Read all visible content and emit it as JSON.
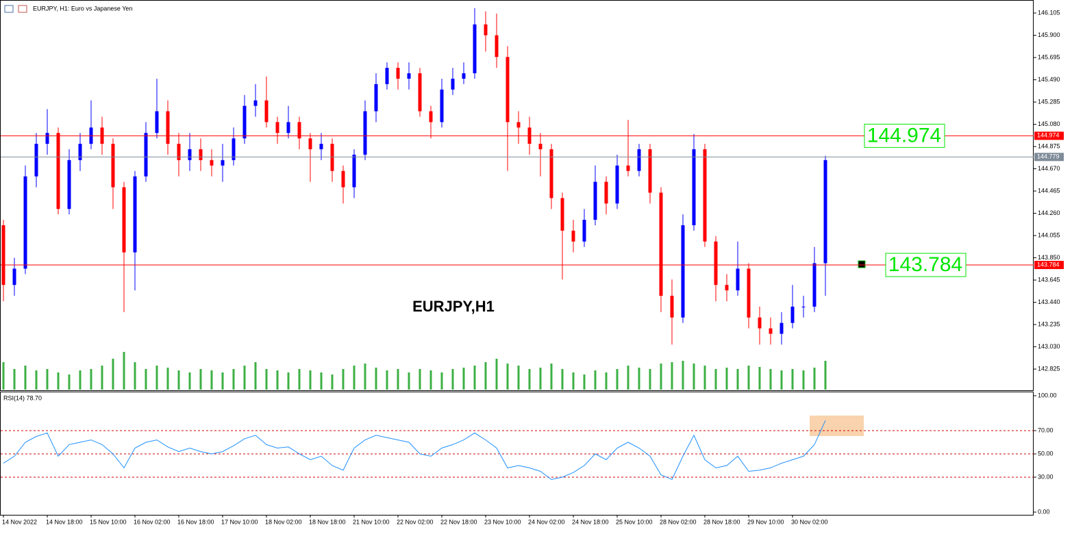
{
  "header": {
    "title": "EURJPY, H1:  Euro vs Japanese Yen"
  },
  "chart_data": [
    {
      "type": "candlestick",
      "title": "EURJPY,H1",
      "categories": [
        "14 Nov 2022",
        null,
        null,
        null,
        "14 Nov 18:00",
        null,
        null,
        null,
        "15 Nov 10:00",
        null,
        null,
        null,
        "16 Nov 02:00",
        null,
        null,
        null,
        "16 Nov 18:00",
        null,
        null,
        null,
        "17 Nov 10:00",
        null,
        null,
        null,
        "18 Nov 02:00",
        null,
        null,
        null,
        "18 Nov 18:00",
        null,
        null,
        null,
        "21 Nov 10:00",
        null,
        null,
        null,
        "22 Nov 02:00",
        null,
        null,
        null,
        "22 Nov 18:00",
        null,
        null,
        null,
        "23 Nov 10:00",
        null,
        null,
        null,
        "24 Nov 02:00",
        null,
        null,
        null,
        "24 Nov 18:00",
        null,
        null,
        null,
        "25 Nov 10:00",
        null,
        null,
        null,
        "28 Nov 02:00",
        null,
        null,
        null,
        "28 Nov 18:00",
        null,
        null,
        null,
        "29 Nov 10:00",
        null,
        null,
        null,
        "30 Nov 02:00",
        null,
        null,
        null
      ],
      "open": [
        144.15,
        143.6,
        143.75,
        144.6,
        144.9,
        145.0,
        144.3,
        144.75,
        144.9,
        145.05,
        144.9,
        144.5,
        143.9,
        144.6,
        145.0,
        145.2,
        144.9,
        144.75,
        144.85,
        144.75,
        144.7,
        144.75,
        144.95,
        145.25,
        145.3,
        145.1,
        145.0,
        145.1,
        144.95,
        144.85,
        144.9,
        144.65,
        144.5,
        144.8,
        145.2,
        145.45,
        145.6,
        145.5,
        145.55,
        145.2,
        145.1,
        145.4,
        145.5,
        145.55,
        146.0,
        145.9,
        145.7,
        145.1,
        145.05,
        144.9,
        144.85,
        144.4,
        144.1,
        144.0,
        144.2,
        144.55,
        144.35,
        144.7,
        144.65,
        144.85,
        144.45,
        143.5,
        143.3,
        144.15,
        144.85,
        144.0,
        143.6,
        143.55,
        143.75,
        143.3,
        143.2,
        143.15,
        143.25,
        143.4,
        143.4,
        143.8
      ],
      "high": [
        144.2,
        143.85,
        144.7,
        145.0,
        145.22,
        145.05,
        144.85,
        145.0,
        145.3,
        145.15,
        144.95,
        144.55,
        144.65,
        145.1,
        145.5,
        145.3,
        145.0,
        145.0,
        144.95,
        144.85,
        144.9,
        145.05,
        145.35,
        145.45,
        145.52,
        145.15,
        145.25,
        145.15,
        145.0,
        145.0,
        144.95,
        144.7,
        144.85,
        145.3,
        145.55,
        145.65,
        145.65,
        145.65,
        145.6,
        145.25,
        145.5,
        145.6,
        145.65,
        146.15,
        146.12,
        146.1,
        145.8,
        145.2,
        145.15,
        145.0,
        144.9,
        144.45,
        144.2,
        144.3,
        144.7,
        144.6,
        144.8,
        145.12,
        144.9,
        144.9,
        144.5,
        143.65,
        144.25,
        144.99,
        144.9,
        144.05,
        143.7,
        144.0,
        143.8,
        143.4,
        143.3,
        143.35,
        143.6,
        143.5,
        143.95,
        144.79
      ],
      "low": [
        143.45,
        143.5,
        143.7,
        144.5,
        144.8,
        144.25,
        144.25,
        144.65,
        144.85,
        144.8,
        144.3,
        143.35,
        143.55,
        144.55,
        144.95,
        144.8,
        144.6,
        144.65,
        144.65,
        144.6,
        144.55,
        144.7,
        144.9,
        145.15,
        145.05,
        144.9,
        144.95,
        144.85,
        144.55,
        144.75,
        144.55,
        144.35,
        144.4,
        144.75,
        145.1,
        145.4,
        145.4,
        145.4,
        145.15,
        144.95,
        145.05,
        145.35,
        145.45,
        145.5,
        145.75,
        145.6,
        144.65,
        144.9,
        144.8,
        144.6,
        144.3,
        143.65,
        143.9,
        143.95,
        144.15,
        144.25,
        144.3,
        144.6,
        144.6,
        144.35,
        143.35,
        143.05,
        143.25,
        144.1,
        143.95,
        143.45,
        143.45,
        143.5,
        143.2,
        143.05,
        143.05,
        143.05,
        143.2,
        143.3,
        143.35,
        143.5
      ],
      "close": [
        143.6,
        143.75,
        144.6,
        144.9,
        145.0,
        144.3,
        144.75,
        144.9,
        145.05,
        144.9,
        144.5,
        143.9,
        144.6,
        145.0,
        145.2,
        144.9,
        144.75,
        144.85,
        144.75,
        144.7,
        144.75,
        144.95,
        145.25,
        145.3,
        145.1,
        145.0,
        145.1,
        144.95,
        144.85,
        144.9,
        144.65,
        144.5,
        144.8,
        145.2,
        145.45,
        145.6,
        145.5,
        145.55,
        145.2,
        145.1,
        145.4,
        145.5,
        145.55,
        146.0,
        145.9,
        145.7,
        145.1,
        145.05,
        144.9,
        144.85,
        144.4,
        144.1,
        144.0,
        144.2,
        144.55,
        144.35,
        144.7,
        144.65,
        144.85,
        144.45,
        143.5,
        143.3,
        144.15,
        144.85,
        144.0,
        143.6,
        143.55,
        143.75,
        143.3,
        143.2,
        143.15,
        143.25,
        143.4,
        143.4,
        143.8,
        144.75
      ],
      "up_color": "#0000ff",
      "down_color": "#ff0000",
      "volumes": [
        40,
        30,
        35,
        28,
        30,
        25,
        22,
        28,
        30,
        35,
        45,
        55,
        40,
        30,
        35,
        32,
        28,
        25,
        30,
        28,
        25,
        30,
        35,
        40,
        30,
        28,
        25,
        30,
        28,
        25,
        22,
        30,
        35,
        38,
        32,
        28,
        30,
        25,
        30,
        28,
        25,
        30,
        32,
        35,
        40,
        45,
        38,
        35,
        30,
        32,
        38,
        30,
        25,
        22,
        28,
        25,
        30,
        35,
        32,
        30,
        38,
        40,
        42,
        38,
        35,
        30,
        32,
        30,
        35,
        33,
        30,
        28,
        30,
        28,
        32,
        42
      ],
      "volume_color": "#3cb043",
      "ylim": [
        142.63,
        146.225
      ],
      "yticks": [
        {
          "value": 146.105,
          "label": "146.105"
        },
        {
          "value": 145.9,
          "label": "145.900"
        },
        {
          "value": 145.695,
          "label": "145.695"
        },
        {
          "value": 145.49,
          "label": "145.490"
        },
        {
          "value": 145.285,
          "label": "145.285"
        },
        {
          "value": 145.08,
          "label": "145.080"
        },
        {
          "value": 144.875,
          "label": "144.875"
        },
        {
          "value": 144.67,
          "label": "144.670"
        },
        {
          "value": 144.465,
          "label": "144.465"
        },
        {
          "value": 144.26,
          "label": "144.260"
        },
        {
          "value": 144.055,
          "label": "144.055"
        },
        {
          "value": 143.85,
          "label": "143.850"
        },
        {
          "value": 143.645,
          "label": "143.645"
        },
        {
          "value": 143.44,
          "label": "143.440"
        },
        {
          "value": 143.235,
          "label": "143.235"
        },
        {
          "value": 143.03,
          "label": "143.030"
        },
        {
          "value": 142.825,
          "label": "142.825"
        }
      ],
      "levels": [
        {
          "value": 144.974,
          "color": "#ff0000",
          "annotation_color": "#00e600"
        },
        {
          "value": 144.779,
          "color": "#7f8c99"
        },
        {
          "value": 143.784,
          "color": "#ff0000",
          "annotation_color": "#00e600"
        }
      ]
    },
    {
      "type": "line",
      "title": "RSI(14) 78.70",
      "color": "#1e90ff",
      "values": [
        42,
        48,
        60,
        65,
        68,
        48,
        58,
        60,
        62,
        58,
        50,
        38,
        55,
        60,
        62,
        56,
        52,
        55,
        52,
        50,
        52,
        57,
        63,
        66,
        58,
        55,
        56,
        50,
        45,
        48,
        40,
        36,
        55,
        62,
        66,
        64,
        62,
        60,
        50,
        48,
        55,
        58,
        62,
        68,
        62,
        55,
        38,
        40,
        38,
        35,
        28,
        30,
        34,
        40,
        50,
        45,
        55,
        60,
        55,
        48,
        32,
        28,
        48,
        66,
        45,
        38,
        40,
        48,
        35,
        36,
        38,
        42,
        45,
        48,
        58,
        78.7
      ],
      "ylim": [
        0,
        100
      ],
      "yticks": [
        {
          "value": 100,
          "label": "100.00"
        },
        {
          "value": 70,
          "label": "70.00"
        },
        {
          "value": 50,
          "label": "50.00"
        },
        {
          "value": 30,
          "label": "30.00"
        },
        {
          "value": 0,
          "label": "0.00"
        }
      ],
      "levels": [
        70,
        50,
        30
      ],
      "level_color": "#d00000"
    }
  ]
}
